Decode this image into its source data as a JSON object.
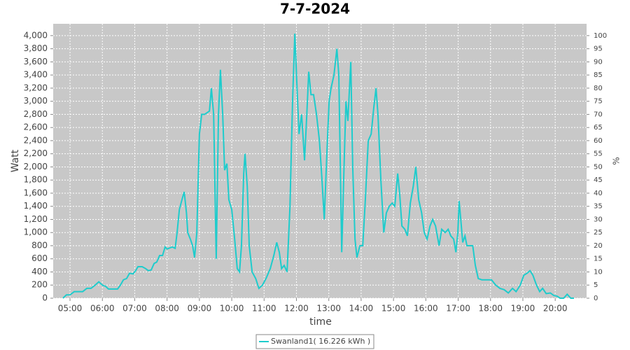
{
  "chart_data": {
    "type": "line",
    "title": "7-7-2024",
    "x_label": "time",
    "y_label": "Watt",
    "y2_label": "%",
    "x": [
      4.78,
      4.89,
      5.0,
      5.13,
      5.26,
      5.39,
      5.52,
      5.65,
      5.78,
      5.89,
      6.0,
      6.1,
      6.19,
      6.34,
      6.47,
      6.56,
      6.65,
      6.75,
      6.84,
      6.95,
      7.03,
      7.1,
      7.23,
      7.34,
      7.42,
      7.51,
      7.6,
      7.68,
      7.77,
      7.86,
      7.94,
      8.0,
      8.16,
      8.25,
      8.31,
      8.38,
      8.46,
      8.53,
      8.6,
      8.64,
      8.72,
      8.79,
      8.85,
      8.92,
      9.0,
      9.07,
      9.16,
      9.31,
      9.37,
      9.44,
      9.52,
      9.59,
      9.65,
      9.72,
      9.78,
      9.85,
      9.91,
      10.0,
      10.09,
      10.17,
      10.24,
      10.3,
      10.37,
      10.41,
      10.48,
      10.54,
      10.63,
      10.74,
      10.84,
      10.95,
      11.06,
      11.19,
      11.3,
      11.39,
      11.47,
      11.54,
      11.62,
      11.71,
      11.8,
      11.88,
      11.95,
      12.01,
      12.08,
      12.16,
      12.25,
      12.32,
      12.38,
      12.45,
      12.53,
      12.62,
      12.71,
      12.79,
      12.86,
      12.94,
      13.01,
      13.07,
      13.16,
      13.25,
      13.31,
      13.4,
      13.46,
      13.53,
      13.59,
      13.68,
      13.74,
      13.81,
      13.87,
      13.96,
      14.05,
      14.13,
      14.22,
      14.31,
      14.39,
      14.46,
      14.52,
      14.61,
      14.7,
      14.78,
      14.87,
      14.96,
      15.04,
      15.13,
      15.19,
      15.26,
      15.35,
      15.43,
      15.52,
      15.61,
      15.69,
      15.78,
      15.87,
      15.95,
      16.04,
      16.13,
      16.21,
      16.3,
      16.41,
      16.49,
      16.6,
      16.69,
      16.77,
      16.86,
      16.93,
      16.99,
      17.03,
      17.08,
      17.14,
      17.21,
      17.27,
      17.36,
      17.45,
      17.53,
      17.62,
      17.73,
      17.88,
      18.03,
      18.16,
      18.29,
      18.42,
      18.55,
      18.68,
      18.79,
      18.92,
      19.03,
      19.13,
      19.22,
      19.31,
      19.42,
      19.52,
      19.61,
      19.72,
      19.85,
      19.96,
      20.06,
      20.15,
      20.26,
      20.37,
      20.48,
      20.58
    ],
    "series": [
      {
        "name": "Swanland1( 16.226 kWh )",
        "color": "#1ecccc",
        "values": [
          0,
          50,
          50,
          100,
          100,
          100,
          150,
          150,
          200,
          250,
          200,
          180,
          140,
          140,
          140,
          200,
          280,
          300,
          380,
          370,
          420,
          480,
          480,
          450,
          420,
          430,
          530,
          550,
          650,
          650,
          780,
          750,
          780,
          760,
          1000,
          1350,
          1500,
          1620,
          1300,
          1000,
          900,
          800,
          620,
          1000,
          2500,
          2800,
          2800,
          2850,
          3200,
          2800,
          600,
          2800,
          3480,
          2800,
          1950,
          2050,
          1500,
          1350,
          900,
          450,
          400,
          800,
          1900,
          2200,
          1700,
          800,
          400,
          300,
          150,
          200,
          300,
          450,
          650,
          850,
          700,
          450,
          500,
          400,
          1400,
          3000,
          4030,
          3300,
          2500,
          2800,
          2100,
          2800,
          3450,
          3100,
          3100,
          2800,
          2400,
          1800,
          1200,
          2200,
          3000,
          3200,
          3400,
          3800,
          3400,
          700,
          1800,
          3000,
          2700,
          3600,
          2000,
          900,
          620,
          800,
          800,
          1500,
          2400,
          2500,
          2900,
          3200,
          2800,
          1800,
          1000,
          1300,
          1400,
          1450,
          1400,
          1900,
          1600,
          1100,
          1050,
          950,
          1450,
          1700,
          2000,
          1500,
          1300,
          1000,
          900,
          1100,
          1200,
          1100,
          800,
          1050,
          1000,
          1050,
          950,
          900,
          700,
          1000,
          1480,
          1200,
          850,
          950,
          800,
          800,
          800,
          500,
          300,
          280,
          280,
          280,
          200,
          150,
          130,
          80,
          150,
          100,
          200,
          350,
          380,
          420,
          350,
          200,
          100,
          150,
          70,
          80,
          40,
          30,
          0,
          0,
          60,
          0,
          0
        ]
      }
    ],
    "xlim": [
      4.48,
      20.97
    ],
    "xticks": [
      {
        "value": 5,
        "label": "05:00"
      },
      {
        "value": 6,
        "label": "06:00"
      },
      {
        "value": 7,
        "label": "07:00"
      },
      {
        "value": 8,
        "label": "08:00"
      },
      {
        "value": 9,
        "label": "09:00"
      },
      {
        "value": 10,
        "label": "10:00"
      },
      {
        "value": 11,
        "label": "11:00"
      },
      {
        "value": 12,
        "label": "12:00"
      },
      {
        "value": 13,
        "label": "13:00"
      },
      {
        "value": 14,
        "label": "14:00"
      },
      {
        "value": 15,
        "label": "15:00"
      },
      {
        "value": 16,
        "label": "16:00"
      },
      {
        "value": 17,
        "label": "17:00"
      },
      {
        "value": 18,
        "label": "18:00"
      },
      {
        "value": 19,
        "label": "19:00"
      },
      {
        "value": 20,
        "label": "20:00"
      }
    ],
    "ylim": [
      0,
      4180
    ],
    "yticks": [
      0,
      200,
      400,
      600,
      800,
      {
        "value": 1000,
        "label": "1,000"
      },
      {
        "value": 1200,
        "label": "1,200"
      },
      {
        "value": 1400,
        "label": "1,400"
      },
      {
        "value": 1600,
        "label": "1,600"
      },
      {
        "value": 1800,
        "label": "1,800"
      },
      {
        "value": 2000,
        "label": "2,000"
      },
      {
        "value": 2200,
        "label": "2,200"
      },
      {
        "value": 2400,
        "label": "2,400"
      },
      {
        "value": 2600,
        "label": "2,600"
      },
      {
        "value": 2800,
        "label": "2,800"
      },
      {
        "value": 3000,
        "label": "3,000"
      },
      {
        "value": 3200,
        "label": "3,200"
      },
      {
        "value": 3400,
        "label": "3,400"
      },
      {
        "value": 3600,
        "label": "3,600"
      },
      {
        "value": 3800,
        "label": "3,800"
      },
      {
        "value": 4000,
        "label": "4,000"
      }
    ],
    "y2lim": [
      0,
      104.5
    ],
    "y2ticks": [
      0,
      5,
      10,
      15,
      20,
      25,
      30,
      35,
      40,
      45,
      50,
      55,
      60,
      65,
      70,
      75,
      80,
      85,
      90,
      95,
      100
    ],
    "grid": true
  }
}
